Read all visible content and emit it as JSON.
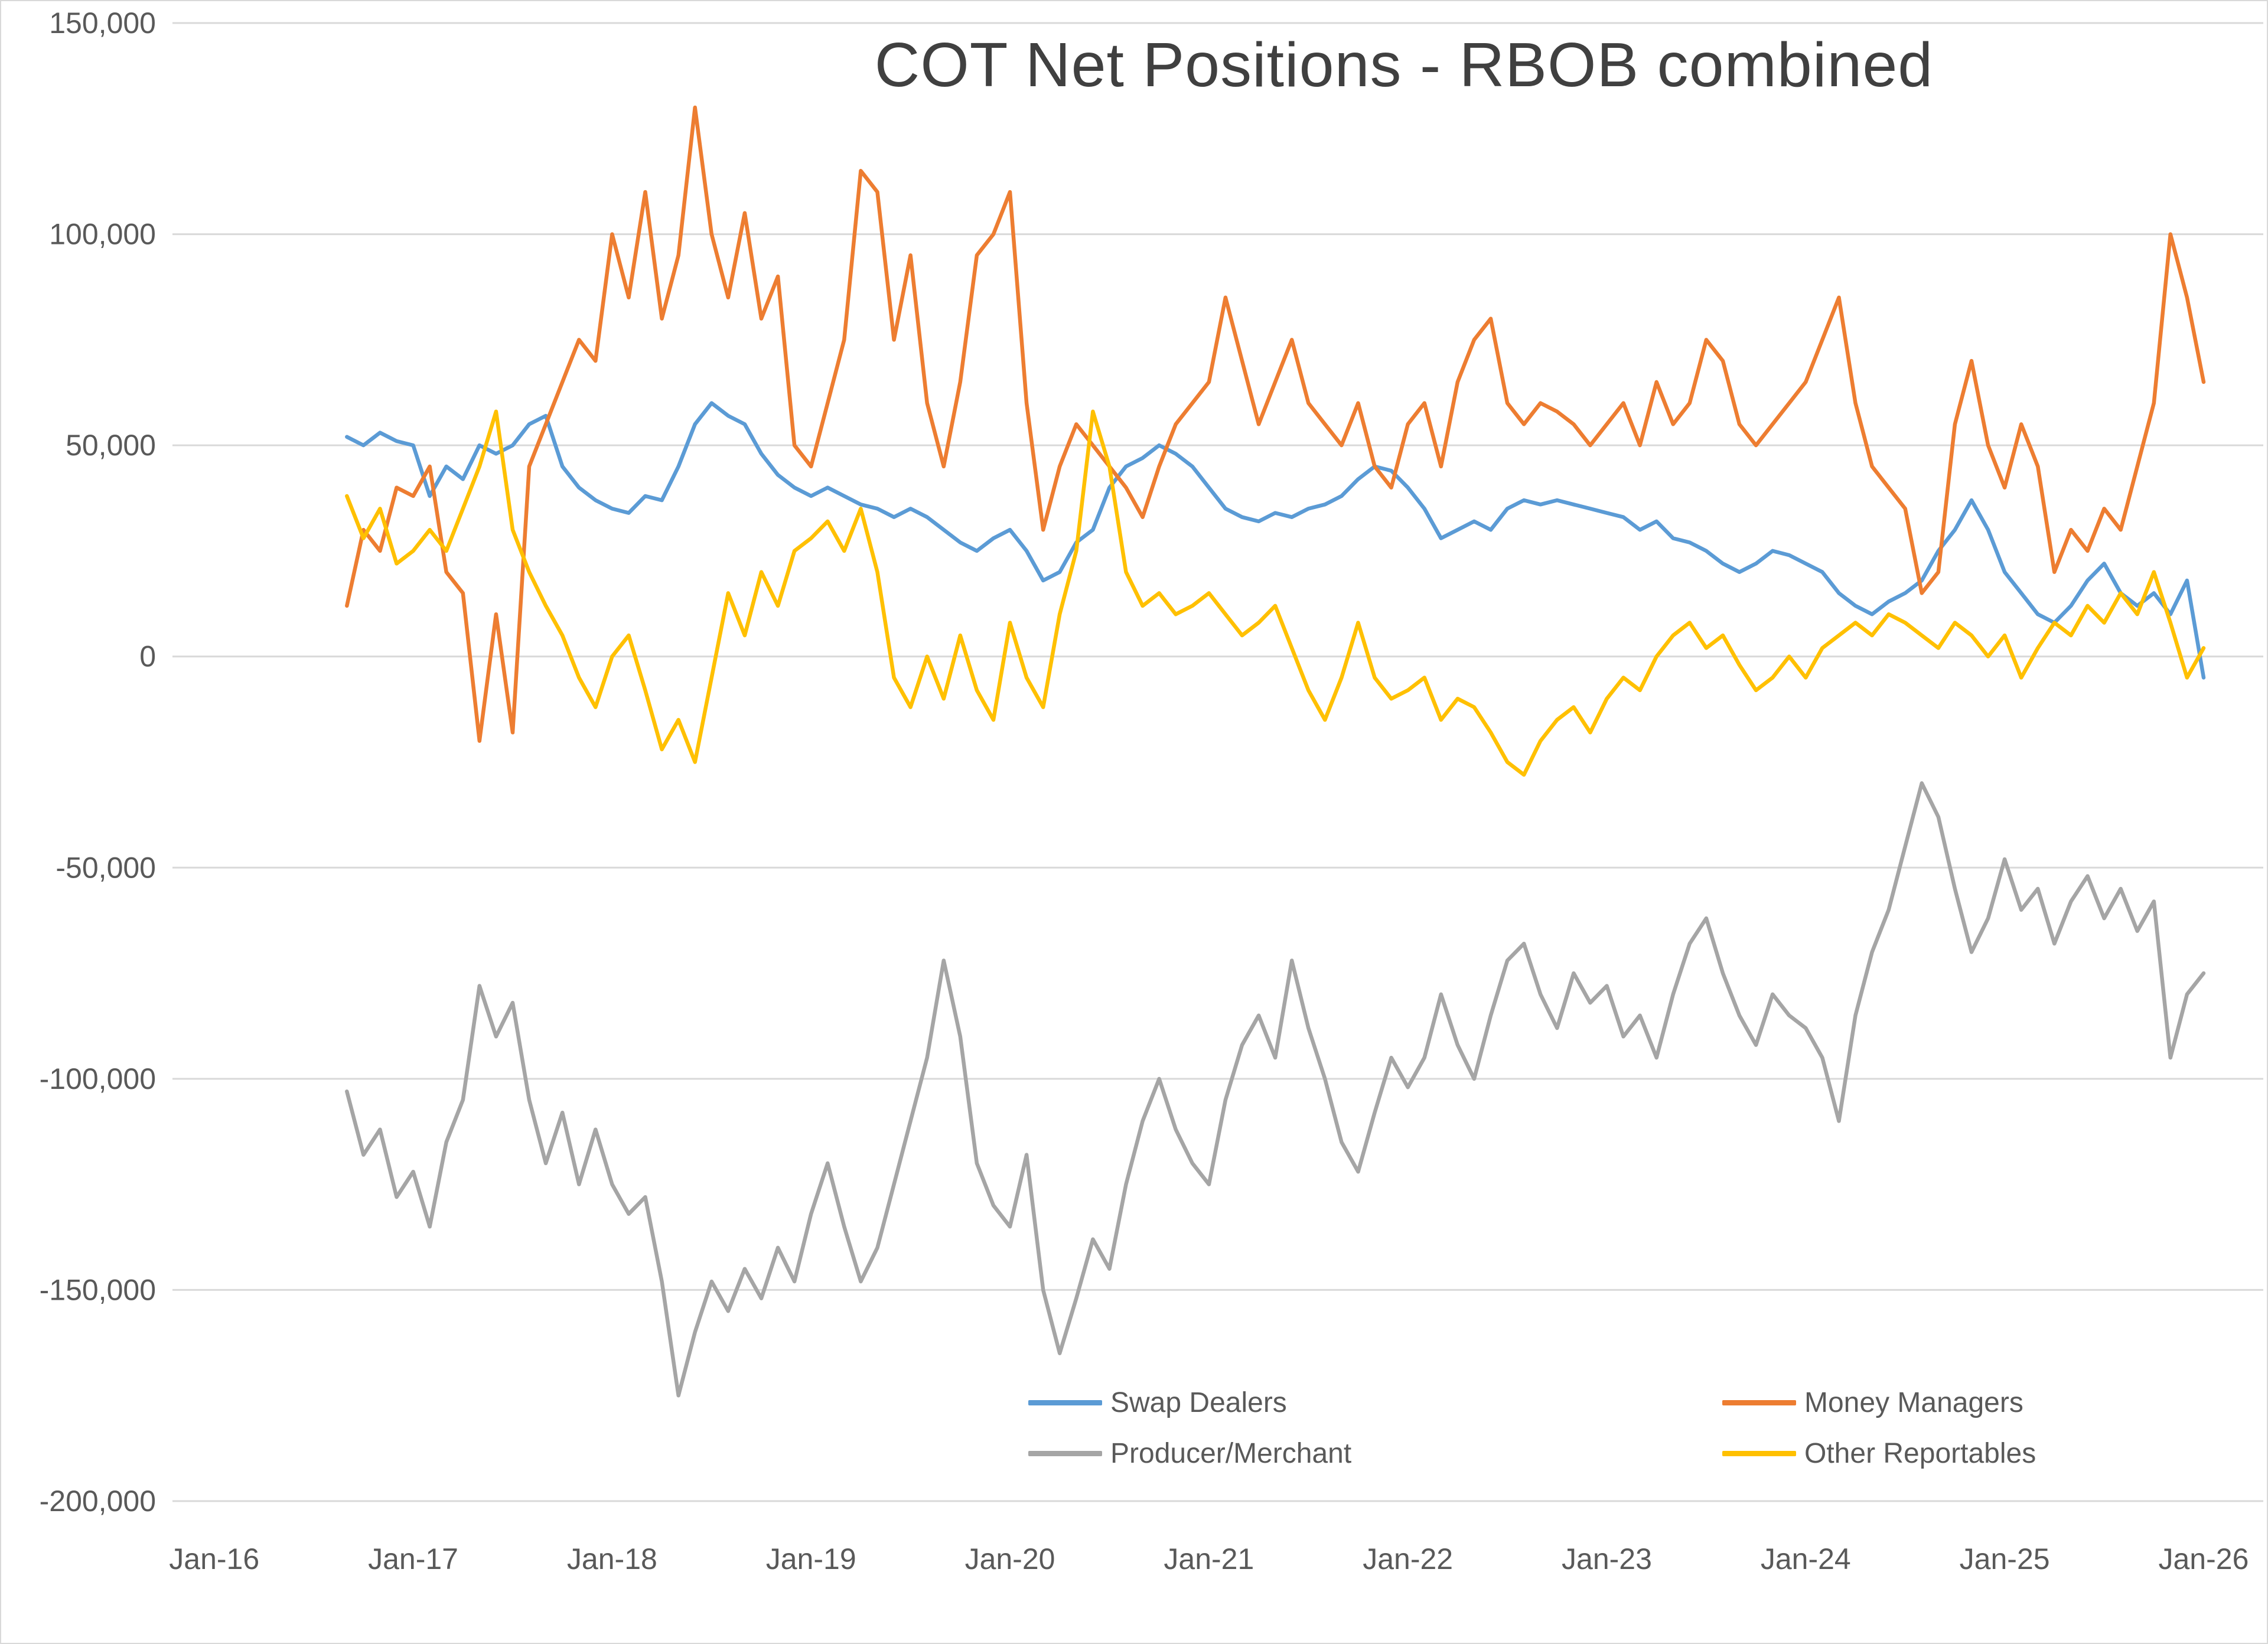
{
  "chart_data": {
    "type": "line",
    "title": "COT Net Positions - RBOB combined",
    "xlabel": "",
    "ylabel": "",
    "grid": true,
    "legend_position": "bottom-center-inside",
    "x_range": [
      2015.79,
      2026.3
    ],
    "y_range": [
      -200000,
      150000
    ],
    "x_start": 2016.6667,
    "x_step": 0.0833333,
    "unit_multiplier": 1000,
    "x_ticks": [
      {
        "t": 2016,
        "label": "Jan-16"
      },
      {
        "t": 2017,
        "label": "Jan-17"
      },
      {
        "t": 2018,
        "label": "Jan-18"
      },
      {
        "t": 2019,
        "label": "Jan-19"
      },
      {
        "t": 2020,
        "label": "Jan-20"
      },
      {
        "t": 2021,
        "label": "Jan-21"
      },
      {
        "t": 2022,
        "label": "Jan-22"
      },
      {
        "t": 2023,
        "label": "Jan-23"
      },
      {
        "t": 2024,
        "label": "Jan-24"
      },
      {
        "t": 2025,
        "label": "Jan-25"
      },
      {
        "t": 2026,
        "label": "Jan-26"
      }
    ],
    "y_ticks": [
      {
        "value": 150000,
        "label": "150,000"
      },
      {
        "value": 100000,
        "label": "100,000"
      },
      {
        "value": 50000,
        "label": "50,000"
      },
      {
        "value": 0,
        "label": "0"
      },
      {
        "value": -50000,
        "label": "-50,000"
      },
      {
        "value": -100000,
        "label": "-100,000"
      },
      {
        "value": -150000,
        "label": "-150,000"
      },
      {
        "value": -200000,
        "label": "-200,000"
      }
    ],
    "series": [
      {
        "name": "Swap Dealers",
        "color": "#5B9BD5",
        "values_unit": "thousand contracts, monthly Sep-2016..Jan-2026",
        "values": [
          52,
          50,
          53,
          51,
          50,
          38,
          45,
          42,
          50,
          48,
          50,
          55,
          57,
          45,
          40,
          37,
          35,
          34,
          38,
          37,
          45,
          55,
          60,
          57,
          55,
          48,
          43,
          40,
          38,
          40,
          38,
          36,
          35,
          33,
          35,
          33,
          30,
          27,
          25,
          28,
          30,
          25,
          18,
          20,
          27,
          30,
          40,
          45,
          47,
          50,
          48,
          45,
          40,
          35,
          33,
          32,
          34,
          33,
          35,
          36,
          38,
          42,
          45,
          44,
          40,
          35,
          28,
          30,
          32,
          30,
          35,
          37,
          36,
          37,
          36,
          35,
          34,
          33,
          30,
          32,
          28,
          27,
          25,
          22,
          20,
          22,
          25,
          24,
          22,
          20,
          15,
          12,
          10,
          13,
          15,
          18,
          25,
          30,
          37,
          30,
          20,
          15,
          10,
          8,
          12,
          18,
          22,
          15,
          12,
          15,
          10,
          18,
          -5
        ]
      },
      {
        "name": "Money Managers",
        "color": "#ED7D31",
        "values_unit": "thousand contracts, monthly Sep-2016..Jan-2026",
        "values": [
          12,
          30,
          25,
          40,
          38,
          45,
          20,
          15,
          -20,
          10,
          -18,
          45,
          55,
          65,
          75,
          70,
          100,
          85,
          110,
          80,
          95,
          130,
          100,
          85,
          105,
          80,
          90,
          50,
          45,
          60,
          75,
          115,
          110,
          75,
          95,
          60,
          45,
          65,
          95,
          100,
          110,
          60,
          30,
          45,
          55,
          50,
          45,
          40,
          33,
          45,
          55,
          60,
          65,
          85,
          70,
          55,
          65,
          75,
          60,
          55,
          50,
          60,
          45,
          40,
          55,
          60,
          45,
          65,
          75,
          80,
          60,
          55,
          60,
          58,
          55,
          50,
          55,
          60,
          50,
          65,
          55,
          60,
          75,
          70,
          55,
          50,
          55,
          60,
          65,
          75,
          85,
          60,
          45,
          40,
          35,
          15,
          20,
          55,
          70,
          50,
          40,
          55,
          45,
          20,
          30,
          25,
          35,
          30,
          45,
          60,
          100,
          85,
          65
        ]
      },
      {
        "name": "Producer/Merchant",
        "color": "#A5A5A5",
        "values_unit": "thousand contracts, monthly Sep-2016..Jan-2026",
        "values": [
          -103,
          -118,
          -112,
          -128,
          -122,
          -135,
          -115,
          -105,
          -78,
          -90,
          -82,
          -105,
          -120,
          -108,
          -125,
          -112,
          -125,
          -132,
          -128,
          -148,
          -175,
          -160,
          -148,
          -155,
          -145,
          -152,
          -140,
          -148,
          -132,
          -120,
          -135,
          -148,
          -140,
          -125,
          -110,
          -95,
          -72,
          -90,
          -120,
          -130,
          -135,
          -118,
          -150,
          -165,
          -152,
          -138,
          -145,
          -125,
          -110,
          -100,
          -112,
          -120,
          -125,
          -105,
          -92,
          -85,
          -95,
          -72,
          -88,
          -100,
          -115,
          -122,
          -108,
          -95,
          -102,
          -95,
          -80,
          -92,
          -100,
          -85,
          -72,
          -68,
          -80,
          -88,
          -75,
          -82,
          -78,
          -90,
          -85,
          -95,
          -80,
          -68,
          -62,
          -75,
          -85,
          -92,
          -80,
          -85,
          -88,
          -95,
          -110,
          -85,
          -70,
          -60,
          -45,
          -30,
          -38,
          -55,
          -70,
          -62,
          -48,
          -60,
          -55,
          -68,
          -58,
          -52,
          -62,
          -55,
          -65,
          -58,
          -95,
          -80,
          -75
        ]
      },
      {
        "name": "Other Reportables",
        "color": "#FFC000",
        "values_unit": "thousand contracts, monthly Sep-2016..Jan-2026",
        "values": [
          38,
          28,
          35,
          22,
          25,
          30,
          25,
          35,
          45,
          58,
          30,
          20,
          12,
          5,
          -5,
          -12,
          0,
          5,
          -8,
          -22,
          -15,
          -25,
          -5,
          15,
          5,
          20,
          12,
          25,
          28,
          32,
          25,
          35,
          20,
          -5,
          -12,
          0,
          -10,
          5,
          -8,
          -15,
          8,
          -5,
          -12,
          10,
          25,
          58,
          45,
          20,
          12,
          15,
          10,
          12,
          15,
          10,
          5,
          8,
          12,
          2,
          -8,
          -15,
          -5,
          8,
          -5,
          -10,
          -8,
          -5,
          -15,
          -10,
          -12,
          -18,
          -25,
          -28,
          -20,
          -15,
          -12,
          -18,
          -10,
          -5,
          -8,
          0,
          5,
          8,
          2,
          5,
          -2,
          -8,
          -5,
          0,
          -5,
          2,
          5,
          8,
          5,
          10,
          8,
          5,
          2,
          8,
          5,
          0,
          5,
          -5,
          2,
          8,
          5,
          12,
          8,
          15,
          10,
          20,
          8,
          -5,
          2
        ]
      }
    ],
    "style": {
      "gridline_color": "#D9D9D9",
      "tick_label_color": "#595959",
      "title_color": "#404040",
      "background": "#FFFFFF"
    }
  }
}
